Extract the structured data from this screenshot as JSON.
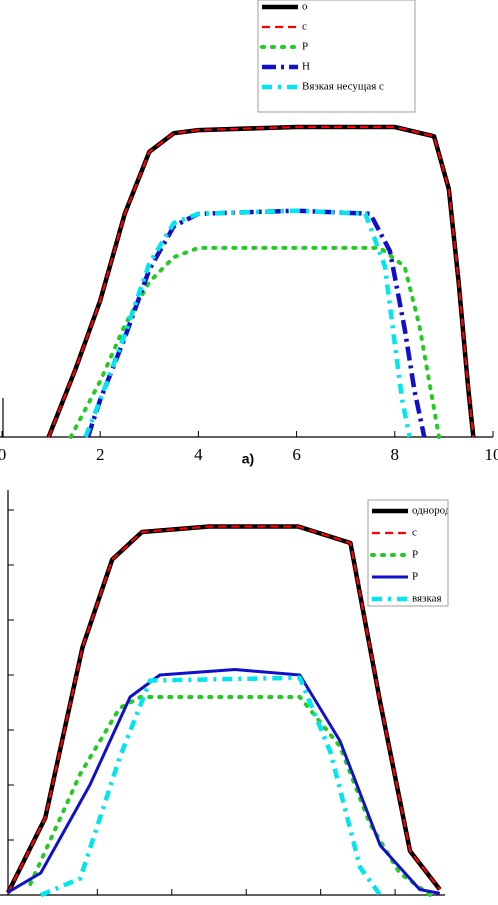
{
  "chart_data": [
    {
      "type": "line",
      "caption": "a)",
      "xlim": [
        0,
        10
      ],
      "ylim": [
        0,
        1.05
      ],
      "xticks": [
        0,
        2,
        4,
        6,
        8,
        10
      ],
      "tick_labels": true,
      "series": [
        {
          "name": "о",
          "color": "#000000",
          "style": "solid",
          "x": [
            0.95,
            1.5,
            2,
            2.5,
            3,
            3.5,
            4,
            6,
            8,
            8.8,
            9.1,
            9.3,
            9.5,
            9.6
          ],
          "values": [
            0,
            0.22,
            0.44,
            0.72,
            0.92,
            0.98,
            0.99,
            1.0,
            1.0,
            0.97,
            0.8,
            0.5,
            0.15,
            0
          ]
        },
        {
          "name": "с",
          "color": "#ff0000",
          "style": "dashed",
          "x": [
            0.95,
            1.5,
            2,
            2.5,
            3,
            3.5,
            4,
            6,
            8,
            8.8,
            9.1,
            9.3,
            9.5,
            9.6
          ],
          "values": [
            0,
            0.22,
            0.44,
            0.72,
            0.92,
            0.98,
            0.99,
            1.0,
            1.0,
            0.97,
            0.8,
            0.5,
            0.15,
            0
          ]
        },
        {
          "name": "Р",
          "color": "#22cc22",
          "style": "dotted",
          "x": [
            1.4,
            2,
            2.5,
            3,
            3.5,
            4,
            6,
            7.7,
            8.2,
            8.5,
            8.7,
            8.9
          ],
          "values": [
            0,
            0.18,
            0.36,
            0.5,
            0.58,
            0.61,
            0.61,
            0.61,
            0.55,
            0.36,
            0.18,
            0
          ]
        },
        {
          "name": "Н",
          "color": "#1010cc",
          "style": "dashdot",
          "x": [
            1.75,
            2,
            2.5,
            3,
            3.5,
            4,
            6,
            7.5,
            7.9,
            8.2,
            8.4,
            8.6
          ],
          "values": [
            0,
            0.12,
            0.32,
            0.54,
            0.68,
            0.72,
            0.73,
            0.72,
            0.6,
            0.35,
            0.15,
            0
          ]
        },
        {
          "name": "Вязкая несущая с",
          "color": "#00e5ee",
          "style": "dashdot2",
          "x": [
            1.7,
            2,
            2.5,
            3,
            3.5,
            4,
            6,
            7.4,
            7.8,
            8.0,
            8.15,
            8.3
          ],
          "values": [
            0,
            0.12,
            0.33,
            0.56,
            0.69,
            0.72,
            0.73,
            0.72,
            0.55,
            0.3,
            0.12,
            0
          ]
        }
      ]
    },
    {
      "type": "line",
      "xlim": [
        -0.2,
        5.67
      ],
      "ylim": [
        0,
        7.2
      ],
      "xticks": [
        1,
        2,
        3,
        4,
        5
      ],
      "yticks": [
        1,
        2,
        3,
        4,
        5,
        6,
        7
      ],
      "tick_labels": false,
      "series": [
        {
          "name": "однородная м",
          "color": "#000000",
          "style": "solid",
          "x": [
            -0.2,
            0.3,
            0.8,
            1.2,
            1.6,
            2.5,
            3.7,
            4.4,
            4.8,
            5.2,
            5.6
          ],
          "values": [
            0.04,
            1.4,
            4.5,
            6.1,
            6.6,
            6.7,
            6.7,
            6.4,
            3.5,
            0.8,
            0.1
          ]
        },
        {
          "name": "с",
          "color": "#ff0000",
          "style": "dashed",
          "x": [
            -0.2,
            0.3,
            0.8,
            1.2,
            1.6,
            2.5,
            3.7,
            4.4,
            4.8,
            5.2,
            5.6
          ],
          "values": [
            0.04,
            1.4,
            4.5,
            6.1,
            6.6,
            6.7,
            6.7,
            6.4,
            3.5,
            0.8,
            0.1
          ]
        },
        {
          "name": "Р",
          "color": "#22cc22",
          "style": "dotted",
          "x": [
            0.1,
            0.77,
            1.3,
            1.58,
            3.72,
            4.26,
            4.66,
            5.06,
            5.47
          ],
          "values": [
            0.2,
            2.2,
            3.4,
            3.6,
            3.6,
            2.7,
            1.3,
            0.4,
            0
          ]
        },
        {
          "name": "Р",
          "color": "#1010cc",
          "style": "solid3",
          "x": [
            -0.2,
            0.24,
            0.9,
            1.44,
            1.84,
            2.85,
            3.72,
            4.26,
            4.8,
            5.33,
            5.6
          ],
          "values": [
            0.05,
            0.4,
            2.0,
            3.6,
            4.0,
            4.1,
            4.0,
            2.8,
            0.9,
            0.1,
            0.03
          ]
        },
        {
          "name": "вязкая",
          "color": "#00e5ee",
          "style": "dashdot2",
          "x": [
            0.24,
            0.77,
            1.3,
            1.71,
            3.72,
            4.13,
            4.53,
            4.8
          ],
          "values": [
            0,
            0.3,
            2.5,
            3.9,
            3.95,
            2.6,
            0.5,
            0
          ]
        }
      ]
    }
  ]
}
